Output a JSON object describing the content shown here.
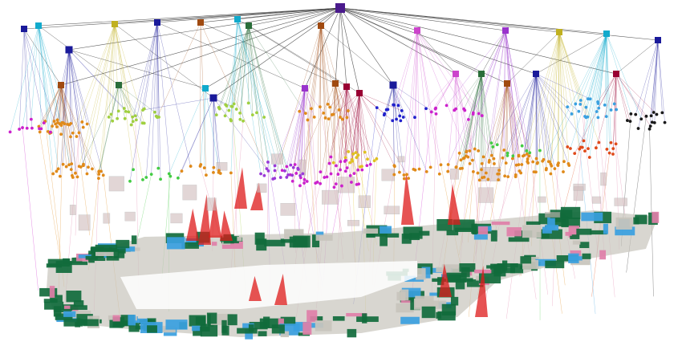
{
  "figure": {
    "palette": {
      "building": "#4a1a8c",
      "floors": [
        "#1a1a9a",
        "#c0b020",
        "#a04a10",
        "#11aacc",
        "#2a6e3a",
        "#cc44cc",
        "#9933cc",
        "#990033"
      ],
      "objects": [
        "#e08a1a",
        "#cc22cc",
        "#9a3ad8",
        "#3aa0e0",
        "#a0d040",
        "#1a1a1a",
        "#e04a1a",
        "#2222cc",
        "#44cc44",
        "#e0c020"
      ],
      "mesh_green": "#116b3c",
      "mesh_blue": "#3a9fe0",
      "mesh_grey": "#c8c4bc",
      "mesh_pink": "#e07fa8",
      "frustum_red": "#dd1a1a",
      "box_fill": "#d0bcbc",
      "edge": "#333333"
    }
  }
}
